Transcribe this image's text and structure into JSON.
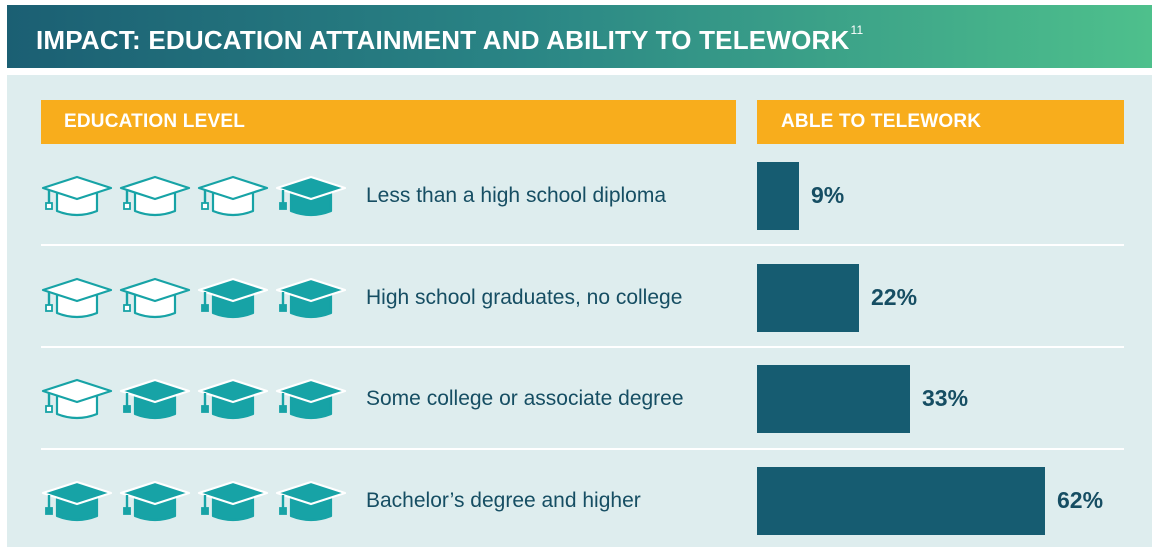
{
  "title": "IMPACT: EDUCATION ATTAINMENT AND ABILITY TO TELEWORK",
  "title_footnote": "11",
  "colors": {
    "header": "#f8ad1c",
    "bar": "#165c71",
    "cap_filled": "#17a3a6",
    "panel": "#deedee"
  },
  "chart_data": {
    "type": "bar",
    "orientation": "horizontal",
    "title": "IMPACT: EDUCATION ATTAINMENT AND ABILITY TO TELEWORK",
    "column_headers": [
      "EDUCATION LEVEL",
      "ABLE TO TELEWORK"
    ],
    "categories": [
      "Less than a high school diploma",
      "High school graduates, no college",
      "Some college or associate degree",
      "Bachelor’s degree and higher"
    ],
    "values": [
      9,
      22,
      33,
      62
    ],
    "value_labels": [
      "9%",
      "22%",
      "33%",
      "62%"
    ],
    "unit": "%",
    "icons_filled_of_4": [
      1,
      2,
      3,
      4
    ],
    "icon": "graduation-cap-icon",
    "xlim": [
      0,
      100
    ],
    "grid": false,
    "legend": "none"
  }
}
